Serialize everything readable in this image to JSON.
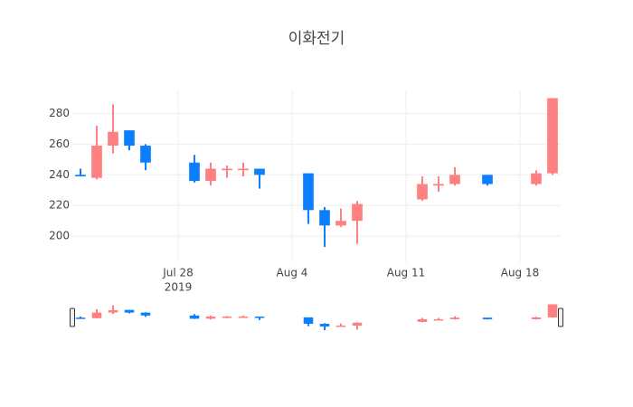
{
  "chart_data": {
    "type": "candlestick",
    "title": "이화전기",
    "x": [
      "2019-07-22",
      "2019-07-23",
      "2019-07-24",
      "2019-07-25",
      "2019-07-26",
      "2019-07-29",
      "2019-07-30",
      "2019-07-31",
      "2019-08-01",
      "2019-08-02",
      "2019-08-05",
      "2019-08-06",
      "2019-08-07",
      "2019-08-08",
      "2019-08-12",
      "2019-08-13",
      "2019-08-14",
      "2019-08-16",
      "2019-08-19",
      "2019-08-20"
    ],
    "open": [
      240,
      238,
      259,
      269,
      259,
      248,
      236,
      243,
      243,
      244,
      241,
      217,
      207,
      210,
      224,
      233,
      234,
      240,
      234,
      241
    ],
    "high": [
      244,
      272,
      286,
      269,
      260,
      253,
      248,
      246,
      248,
      244,
      241,
      219,
      218,
      223,
      239,
      239,
      245,
      240,
      243,
      290
    ],
    "low": [
      239,
      237,
      254,
      256,
      243,
      235,
      233,
      238,
      239,
      231,
      208,
      193,
      206,
      195,
      223,
      229,
      233,
      233,
      233,
      240
    ],
    "close": [
      239,
      259,
      268,
      259,
      248,
      236,
      244,
      244,
      244,
      240,
      217,
      207,
      210,
      221,
      234,
      234,
      240,
      234,
      241,
      290
    ],
    "increasing_color": "#ff8080",
    "decreasing_color": "#0a7fff",
    "xlim": [
      "2019-07-21T12:00",
      "2019-08-20T12:00"
    ],
    "xticks": [
      {
        "value": "2019-07-28",
        "label": "Jul 28",
        "sublabel": "2019"
      },
      {
        "value": "2019-08-04",
        "label": "Aug 4"
      },
      {
        "value": "2019-08-11",
        "label": "Aug 11"
      },
      {
        "value": "2019-08-18",
        "label": "Aug 18"
      }
    ],
    "ylim": [
      183,
      295
    ],
    "yticks": [
      200,
      220,
      240,
      260,
      280
    ],
    "grid": true,
    "rangeslider": true
  }
}
